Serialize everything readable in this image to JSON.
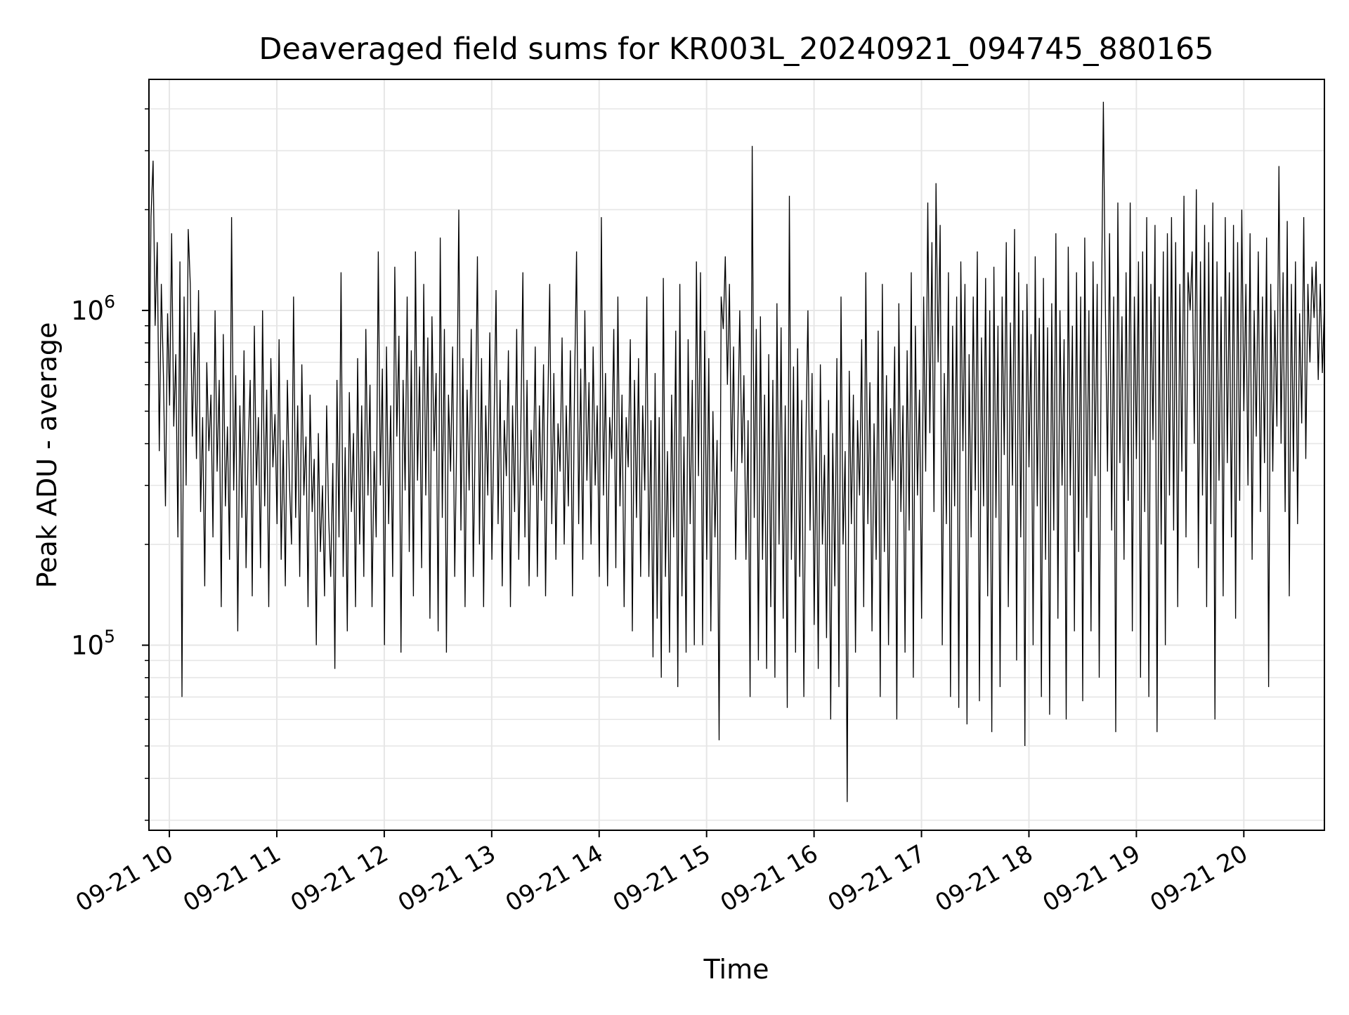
{
  "chart_data": {
    "type": "line",
    "title": "Deaveraged field sums for KR003L_20240921_094745_880165",
    "xlabel": "Time",
    "ylabel": "Peak ADU - average",
    "x_tick_labels": [
      "09-21 10",
      "09-21 11",
      "09-21 12",
      "09-21 13",
      "09-21 14",
      "09-21 15",
      "09-21 16",
      "09-21 17",
      "09-21 18",
      "09-21 19",
      "09-21 20"
    ],
    "x_tick_hours": [
      10,
      11,
      12,
      13,
      14,
      15,
      16,
      17,
      18,
      19,
      20
    ],
    "x_range_hours": [
      9.81,
      20.75
    ],
    "y_scale": "log",
    "ylim": [
      28000,
      4900000
    ],
    "y_major_ticks": [
      {
        "value": 100000,
        "base": "10",
        "exp": "5"
      },
      {
        "value": 1000000,
        "base": "10",
        "exp": "6"
      }
    ],
    "grid": true,
    "line_color": "#000000",
    "grid_color": "#e6e6e6",
    "series": [
      {
        "x_start_hour": 9.81,
        "x_end_hour": 20.75,
        "values": [
          420000,
          1900000,
          2800000,
          900000,
          1600000,
          380000,
          1200000,
          640000,
          260000,
          980000,
          520000,
          1700000,
          450000,
          740000,
          210000,
          1400000,
          70000,
          1100000,
          300000,
          1750000,
          1200000,
          420000,
          860000,
          360000,
          1150000,
          250000,
          480000,
          150000,
          700000,
          380000,
          560000,
          210000,
          1000000,
          330000,
          620000,
          130000,
          850000,
          260000,
          450000,
          180000,
          1900000,
          290000,
          640000,
          110000,
          520000,
          240000,
          760000,
          170000,
          380000,
          620000,
          140000,
          900000,
          300000,
          480000,
          170000,
          1000000,
          260000,
          580000,
          130000,
          720000,
          340000,
          490000,
          230000,
          820000,
          180000,
          410000,
          150000,
          620000,
          310000,
          200000,
          1100000,
          240000,
          520000,
          160000,
          690000,
          280000,
          420000,
          130000,
          560000,
          250000,
          360000,
          100000,
          430000,
          190000,
          300000,
          140000,
          520000,
          240000,
          160000,
          350000,
          85000,
          620000,
          210000,
          1300000,
          160000,
          390000,
          110000,
          570000,
          250000,
          430000,
          130000,
          720000,
          200000,
          520000,
          160000,
          880000,
          280000,
          600000,
          130000,
          380000,
          210000,
          1500000,
          300000,
          670000,
          100000,
          780000,
          230000,
          520000,
          160000,
          1350000,
          420000,
          840000,
          95000,
          620000,
          290000,
          1100000,
          190000,
          760000,
          140000,
          1500000,
          310000,
          680000,
          170000,
          1200000,
          280000,
          830000,
          120000,
          960000,
          380000,
          650000,
          110000,
          1650000,
          240000,
          880000,
          95000,
          560000,
          330000,
          780000,
          160000,
          430000,
          2000000,
          220000,
          720000,
          130000,
          580000,
          290000,
          880000,
          160000,
          460000,
          1450000,
          200000,
          720000,
          130000,
          520000,
          280000,
          860000,
          180000,
          430000,
          1150000,
          230000,
          620000,
          150000,
          470000,
          320000,
          760000,
          130000,
          520000,
          250000,
          880000,
          180000,
          430000,
          1300000,
          210000,
          620000,
          150000,
          440000,
          300000,
          780000,
          160000,
          520000,
          270000,
          690000,
          140000,
          480000,
          1200000,
          230000,
          650000,
          180000,
          460000,
          330000,
          830000,
          200000,
          520000,
          260000,
          760000,
          140000,
          590000,
          1500000,
          230000,
          670000,
          180000,
          1000000,
          310000,
          610000,
          200000,
          780000,
          300000,
          520000,
          160000,
          1900000,
          280000,
          650000,
          150000,
          480000,
          360000,
          880000,
          170000,
          1100000,
          260000,
          560000,
          130000,
          480000,
          340000,
          820000,
          110000,
          620000,
          240000,
          720000,
          160000,
          520000,
          290000,
          1100000,
          160000,
          470000,
          92000,
          650000,
          120000,
          480000,
          80000,
          1250000,
          160000,
          380000,
          95000,
          560000,
          210000,
          870000,
          75000,
          1200000,
          140000,
          420000,
          95000,
          820000,
          230000,
          620000,
          100000,
          1400000,
          320000,
          1300000,
          100000,
          870000,
          180000,
          720000,
          110000,
          500000,
          210000,
          410000,
          52000,
          1100000,
          880000,
          1450000,
          600000,
          1200000,
          330000,
          780000,
          180000,
          430000,
          1000000,
          350000,
          640000,
          180000,
          470000,
          70000,
          3100000,
          240000,
          880000,
          90000,
          960000,
          180000,
          560000,
          85000,
          740000,
          130000,
          620000,
          80000,
          1050000,
          200000,
          890000,
          120000,
          520000,
          65000,
          2200000,
          180000,
          680000,
          95000,
          770000,
          160000,
          540000,
          70000,
          420000,
          1000000,
          220000,
          650000,
          115000,
          440000,
          85000,
          690000,
          200000,
          370000,
          105000,
          540000,
          60000,
          430000,
          150000,
          720000,
          75000,
          1100000,
          200000,
          380000,
          34000,
          660000,
          230000,
          560000,
          95000,
          470000,
          280000,
          820000,
          130000,
          1300000,
          230000,
          610000,
          110000,
          460000,
          180000,
          870000,
          70000,
          1200000,
          190000,
          640000,
          100000,
          510000,
          310000,
          780000,
          60000,
          1050000,
          250000,
          520000,
          95000,
          760000,
          220000,
          1300000,
          80000,
          900000,
          280000,
          580000,
          120000,
          1100000,
          330000,
          2100000,
          430000,
          1600000,
          250000,
          2400000,
          700000,
          1800000,
          100000,
          650000,
          230000,
          1300000,
          70000,
          900000,
          260000,
          1100000,
          65000,
          1400000,
          380000,
          1200000,
          58000,
          740000,
          210000,
          1100000,
          290000,
          1500000,
          68000,
          830000,
          260000,
          1250000,
          140000,
          1000000,
          55000,
          1350000,
          240000,
          900000,
          75000,
          1100000,
          370000,
          1600000,
          130000,
          920000,
          300000,
          1750000,
          90000,
          1300000,
          210000,
          1000000,
          50000,
          1200000,
          340000,
          850000,
          100000,
          1450000,
          260000,
          950000,
          70000,
          1250000,
          180000,
          890000,
          62000,
          1050000,
          220000,
          1700000,
          120000,
          1000000,
          300000,
          820000,
          60000,
          1550000,
          280000,
          900000,
          110000,
          1300000,
          190000,
          1100000,
          68000,
          1650000,
          240000,
          1000000,
          110000,
          1400000,
          320000,
          1200000,
          80000,
          900000,
          4200000,
          1000000,
          330000,
          1700000,
          220000,
          1100000,
          55000,
          2100000,
          350000,
          960000,
          180000,
          1300000,
          270000,
          2100000,
          110000,
          1100000,
          360000,
          1400000,
          80000,
          1500000,
          250000,
          1900000,
          70000,
          1200000,
          410000,
          1800000,
          55000,
          1100000,
          200000,
          1500000,
          100000,
          1700000,
          280000,
          1900000,
          220000,
          1600000,
          130000,
          1200000,
          330000,
          2200000,
          210000,
          1300000,
          1000000,
          1500000,
          400000,
          2300000,
          170000,
          1400000,
          280000,
          1800000,
          130000,
          1600000,
          230000,
          2100000,
          60000,
          1400000,
          310000,
          1100000,
          140000,
          1900000,
          350000,
          1300000,
          210000,
          1800000,
          120000,
          1600000,
          270000,
          2000000,
          500000,
          1200000,
          300000,
          1700000,
          180000,
          1000000,
          420000,
          1500000,
          250000,
          1100000,
          350000,
          1650000,
          75000,
          1200000,
          330000,
          1000000,
          450000,
          2700000,
          400000,
          1300000,
          250000,
          1850000,
          140000,
          1200000,
          330000,
          1400000,
          230000,
          980000,
          460000,
          1900000,
          360000,
          1200000,
          700000,
          1350000,
          950000,
          1400000,
          620000,
          1200000,
          650000,
          1050000
        ]
      }
    ]
  }
}
